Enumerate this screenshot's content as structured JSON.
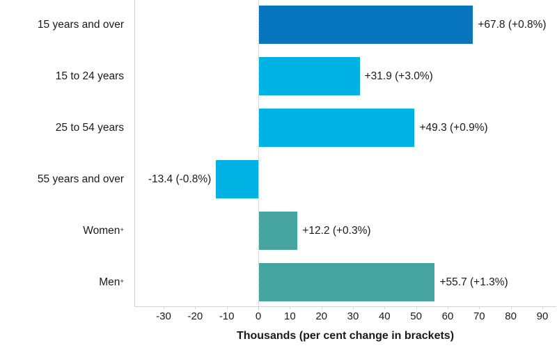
{
  "chart_data": {
    "type": "bar",
    "orientation": "horizontal",
    "categories": [
      "15 years and over",
      "15 to 24 years",
      "25 to 54 years",
      "55 years and over",
      "Women+",
      "Men+"
    ],
    "values": [
      67.8,
      31.9,
      49.3,
      -13.4,
      12.2,
      55.7
    ],
    "value_labels": [
      "+67.8 (+0.8%)",
      "+31.9 (+3.0%)",
      "+49.3 (+0.9%)",
      "-13.4 (-0.8%)",
      "+12.2 (+0.3%)",
      "+55.7 (+1.3%)"
    ],
    "percent_changes": [
      "+0.8%",
      "+3.0%",
      "+0.9%",
      "-0.8%",
      "+0.3%",
      "+1.3%"
    ],
    "bar_colors": [
      "#0876be",
      "#00b1e4",
      "#00b1e4",
      "#00b1e4",
      "#46a5a0",
      "#46a5a0"
    ],
    "xlabel": "Thousands (per cent change in brackets)",
    "x_ticks": [
      -30,
      -20,
      -10,
      0,
      10,
      20,
      30,
      40,
      50,
      60,
      70,
      80,
      90
    ],
    "xlim": [
      -39,
      94
    ],
    "grid": "zero-line-only",
    "legend": "none"
  },
  "colors": {
    "axis_line": "#d4d4d4",
    "zero_line": "#bdbdbd",
    "text": "#1a1a1a",
    "background": "#ffffff",
    "dark_blue": "#0876be",
    "cyan": "#00b1e4",
    "teal": "#46a5a0"
  }
}
